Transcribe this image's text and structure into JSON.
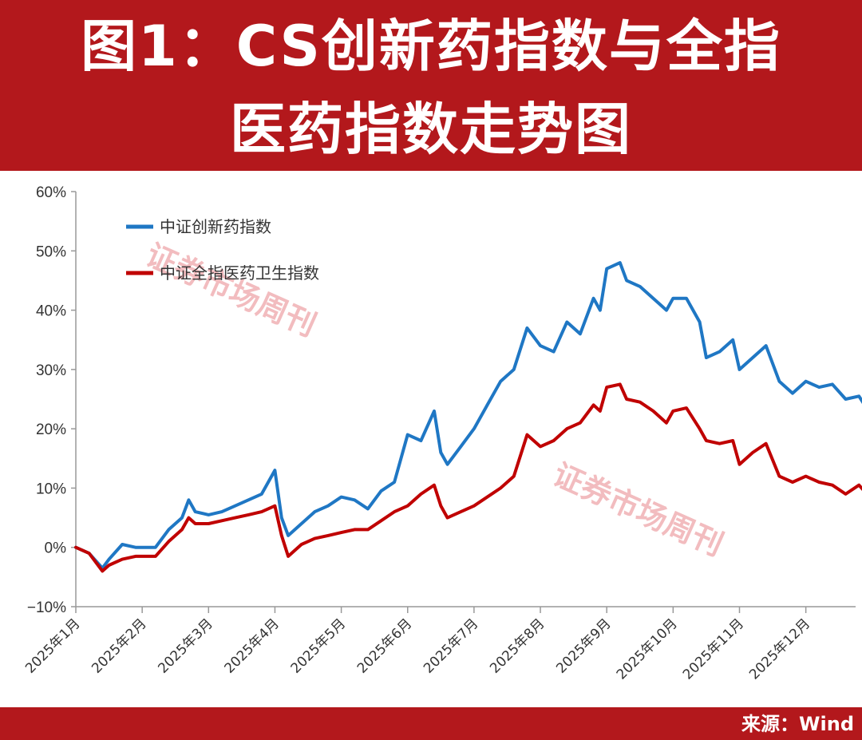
{
  "header": {
    "title_line1": "图1：CS创新药指数与全指",
    "title_line2": "医药指数走势图"
  },
  "footer": {
    "source": "来源：Wind"
  },
  "watermark": "证券市场周刊",
  "colors": {
    "background": "#b3181c",
    "series_blue": "#1f77c4",
    "series_red": "#c00000"
  },
  "chart_data": {
    "type": "line",
    "ylim": [
      -10,
      60
    ],
    "y_ticks": [
      "60%",
      "50%",
      "40%",
      "30%",
      "20%",
      "10%",
      "0%",
      "−10%"
    ],
    "y_tick_values": [
      60,
      50,
      40,
      30,
      20,
      10,
      0,
      -10
    ],
    "x_ticks": [
      "2025年1月",
      "2025年2月",
      "2025年3月",
      "2025年4月",
      "2025年5月",
      "2025年6月",
      "2025年7月",
      "2025年8月",
      "2025年9月",
      "2025年10月",
      "2025年11月",
      "2025年12月"
    ],
    "legend_position": "top-left",
    "grid": false,
    "series": [
      {
        "name": "中证创新药指数",
        "color": "#1f77c4",
        "points": [
          [
            0.0,
            0
          ],
          [
            0.2,
            -1
          ],
          [
            0.4,
            -3.5
          ],
          [
            0.5,
            -2
          ],
          [
            0.7,
            0.5
          ],
          [
            0.9,
            0
          ],
          [
            1.0,
            0
          ],
          [
            1.2,
            0
          ],
          [
            1.4,
            3
          ],
          [
            1.6,
            5
          ],
          [
            1.7,
            8
          ],
          [
            1.8,
            6
          ],
          [
            2.0,
            5.5
          ],
          [
            2.2,
            6
          ],
          [
            2.4,
            7
          ],
          [
            2.6,
            8
          ],
          [
            2.8,
            9
          ],
          [
            3.0,
            13
          ],
          [
            3.1,
            5
          ],
          [
            3.2,
            2
          ],
          [
            3.4,
            4
          ],
          [
            3.6,
            6
          ],
          [
            3.8,
            7
          ],
          [
            4.0,
            8.5
          ],
          [
            4.2,
            8
          ],
          [
            4.4,
            6.5
          ],
          [
            4.6,
            9.5
          ],
          [
            4.8,
            11
          ],
          [
            5.0,
            19
          ],
          [
            5.2,
            18
          ],
          [
            5.4,
            23
          ],
          [
            5.5,
            16
          ],
          [
            5.6,
            14
          ],
          [
            5.8,
            17
          ],
          [
            6.0,
            20
          ],
          [
            6.2,
            24
          ],
          [
            6.4,
            28
          ],
          [
            6.6,
            30
          ],
          [
            6.8,
            37
          ],
          [
            7.0,
            34
          ],
          [
            7.2,
            33
          ],
          [
            7.4,
            38
          ],
          [
            7.6,
            36
          ],
          [
            7.8,
            42
          ],
          [
            7.9,
            40
          ],
          [
            8.0,
            47
          ],
          [
            8.2,
            48
          ],
          [
            8.3,
            45
          ],
          [
            8.5,
            44
          ],
          [
            8.7,
            42
          ],
          [
            8.9,
            40
          ],
          [
            9.0,
            42
          ],
          [
            9.2,
            42
          ],
          [
            9.4,
            38
          ],
          [
            9.5,
            32
          ],
          [
            9.7,
            33
          ],
          [
            9.9,
            35
          ],
          [
            10.0,
            30
          ],
          [
            10.2,
            32
          ],
          [
            10.4,
            34
          ],
          [
            10.6,
            28
          ],
          [
            10.8,
            26
          ],
          [
            11.0,
            28
          ],
          [
            11.2,
            27
          ],
          [
            11.4,
            27.5
          ],
          [
            11.6,
            25
          ],
          [
            11.8,
            25.5
          ],
          [
            12.0,
            22
          ]
        ]
      },
      {
        "name": "中证全指医药卫生指数",
        "color": "#c00000",
        "points": [
          [
            0.0,
            0
          ],
          [
            0.2,
            -1
          ],
          [
            0.4,
            -4
          ],
          [
            0.5,
            -3
          ],
          [
            0.7,
            -2
          ],
          [
            0.9,
            -1.5
          ],
          [
            1.0,
            -1.5
          ],
          [
            1.2,
            -1.5
          ],
          [
            1.4,
            1
          ],
          [
            1.6,
            3
          ],
          [
            1.7,
            5
          ],
          [
            1.8,
            4
          ],
          [
            2.0,
            4
          ],
          [
            2.2,
            4.5
          ],
          [
            2.4,
            5
          ],
          [
            2.6,
            5.5
          ],
          [
            2.8,
            6
          ],
          [
            3.0,
            7
          ],
          [
            3.1,
            2
          ],
          [
            3.2,
            -1.5
          ],
          [
            3.4,
            0.5
          ],
          [
            3.6,
            1.5
          ],
          [
            3.8,
            2
          ],
          [
            4.0,
            2.5
          ],
          [
            4.2,
            3
          ],
          [
            4.4,
            3
          ],
          [
            4.6,
            4.5
          ],
          [
            4.8,
            6
          ],
          [
            5.0,
            7
          ],
          [
            5.2,
            9
          ],
          [
            5.4,
            10.5
          ],
          [
            5.5,
            7
          ],
          [
            5.6,
            5
          ],
          [
            5.8,
            6
          ],
          [
            6.0,
            7
          ],
          [
            6.2,
            8.5
          ],
          [
            6.4,
            10
          ],
          [
            6.6,
            12
          ],
          [
            6.8,
            19
          ],
          [
            7.0,
            17
          ],
          [
            7.2,
            18
          ],
          [
            7.4,
            20
          ],
          [
            7.6,
            21
          ],
          [
            7.8,
            24
          ],
          [
            7.9,
            23
          ],
          [
            8.0,
            27
          ],
          [
            8.2,
            27.5
          ],
          [
            8.3,
            25
          ],
          [
            8.5,
            24.5
          ],
          [
            8.7,
            23
          ],
          [
            8.9,
            21
          ],
          [
            9.0,
            23
          ],
          [
            9.2,
            23.5
          ],
          [
            9.4,
            20
          ],
          [
            9.5,
            18
          ],
          [
            9.7,
            17.5
          ],
          [
            9.9,
            18
          ],
          [
            10.0,
            14
          ],
          [
            10.2,
            16
          ],
          [
            10.4,
            17.5
          ],
          [
            10.6,
            12
          ],
          [
            10.8,
            11
          ],
          [
            11.0,
            12
          ],
          [
            11.2,
            11
          ],
          [
            11.4,
            10.5
          ],
          [
            11.6,
            9
          ],
          [
            11.8,
            10.5
          ],
          [
            12.0,
            8
          ]
        ]
      }
    ]
  }
}
